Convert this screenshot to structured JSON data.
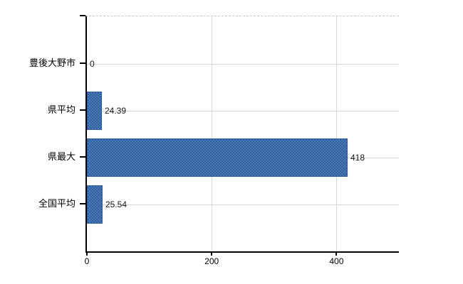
{
  "chart_data": {
    "type": "bar",
    "orientation": "horizontal",
    "title": "",
    "xlabel": "",
    "ylabel": "",
    "categories": [
      "豊後大野市",
      "県平均",
      "県最大",
      "全国平均"
    ],
    "values": [
      0,
      24.39,
      418,
      25.54
    ],
    "value_labels": [
      "0",
      "24.39",
      "418",
      "25.54"
    ],
    "x_ticks": [
      0,
      200,
      400
    ],
    "x_tick_labels": [
      "0",
      "200",
      "400"
    ],
    "xlim": [
      0,
      500
    ],
    "grid": "on",
    "legend": "none",
    "bar_color": "#3e6fb0",
    "bar_border_color": "#2d5c97",
    "gridline_color": "#d2d8d2"
  }
}
